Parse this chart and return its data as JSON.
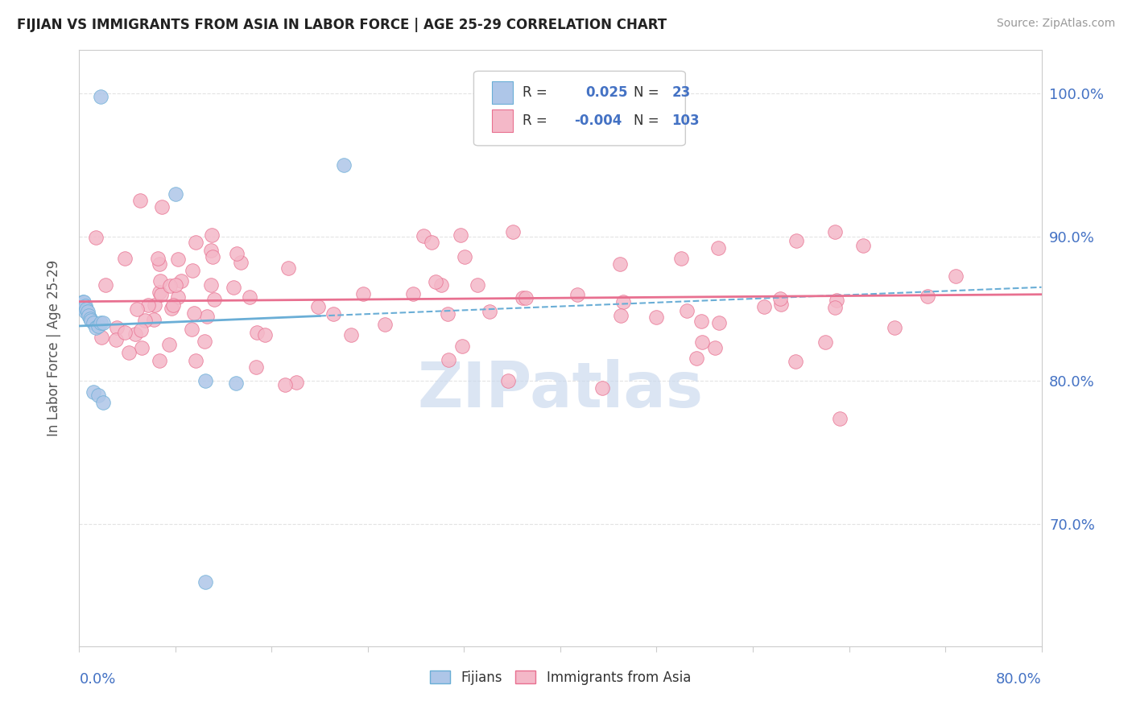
{
  "title": "FIJIAN VS IMMIGRANTS FROM ASIA IN LABOR FORCE | AGE 25-29 CORRELATION CHART",
  "source": "Source: ZipAtlas.com",
  "ylabel": "In Labor Force | Age 25-29",
  "xlim": [
    0.0,
    0.8
  ],
  "ylim": [
    0.615,
    1.03
  ],
  "ytick_positions": [
    0.7,
    0.8,
    0.9,
    1.0
  ],
  "ytick_labels": [
    "70.0%",
    "80.0%",
    "90.0%",
    "100.0%"
  ],
  "fijian_color": "#aec6e8",
  "fijian_edge": "#6aaed6",
  "asia_color": "#f4b8c8",
  "asia_edge": "#e87090",
  "fijian_R": 0.025,
  "fijian_N": 23,
  "asia_R": -0.004,
  "asia_N": 103,
  "tick_color": "#4472c4",
  "legend_R_color": "#4472c4",
  "background_color": "#ffffff",
  "grid_color": "#dddddd",
  "watermark_color": "#ccdaee"
}
